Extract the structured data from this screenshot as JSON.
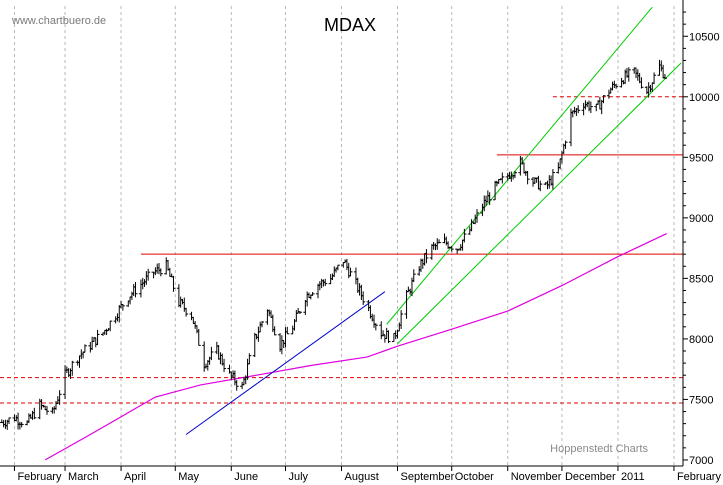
{
  "chart_data": {
    "type": "line",
    "title": "MDAX",
    "watermark": "www.chartbuero.de",
    "credit": "Hoppenstedt Charts",
    "ylim": [
      6950,
      10750
    ],
    "y_ticks": [
      7000,
      7500,
      8000,
      8500,
      9000,
      9500,
      10000,
      10500
    ],
    "x_range": [
      "2010-01-24",
      "2011-02-06"
    ],
    "grid": "dashed vertical at month starts",
    "x_ticks": [
      {
        "date": "2010-02-01",
        "label": "February"
      },
      {
        "date": "2010-03-01",
        "label": "March"
      },
      {
        "date": "2010-04-01",
        "label": "April"
      },
      {
        "date": "2010-05-01",
        "label": "May"
      },
      {
        "date": "2010-06-01",
        "label": "June"
      },
      {
        "date": "2010-07-01",
        "label": "July"
      },
      {
        "date": "2010-08-01",
        "label": "August"
      },
      {
        "date": "2010-09-01",
        "label": "September"
      },
      {
        "date": "2010-10-01",
        "label": "October"
      },
      {
        "date": "2010-11-01",
        "label": "November"
      },
      {
        "date": "2010-12-01",
        "label": "December"
      },
      {
        "date": "2011-01-01",
        "label": "2011"
      },
      {
        "date": "2011-02-01",
        "label": "February"
      }
    ],
    "series": [
      {
        "type": "ohlc",
        "color": "#000000",
        "points": [
          [
            "2010-01-25",
            7310
          ],
          [
            "2010-02-01",
            7350
          ],
          [
            "2010-02-08",
            7300
          ],
          [
            "2010-02-15",
            7450
          ],
          [
            "2010-02-22",
            7380
          ],
          [
            "2010-03-01",
            7700
          ],
          [
            "2010-03-08",
            7850
          ],
          [
            "2010-03-15",
            7950
          ],
          [
            "2010-03-22",
            8050
          ],
          [
            "2010-03-29",
            8200
          ],
          [
            "2010-04-05",
            8350
          ],
          [
            "2010-04-12",
            8450
          ],
          [
            "2010-04-19",
            8550
          ],
          [
            "2010-04-26",
            8600
          ],
          [
            "2010-05-03",
            8300
          ],
          [
            "2010-05-10",
            8200
          ],
          [
            "2010-05-17",
            7800
          ],
          [
            "2010-05-24",
            7900
          ],
          [
            "2010-05-31",
            7700
          ],
          [
            "2010-06-07",
            7600
          ],
          [
            "2010-06-14",
            8000
          ],
          [
            "2010-06-21",
            8250
          ],
          [
            "2010-06-28",
            7950
          ],
          [
            "2010-07-05",
            8100
          ],
          [
            "2010-07-12",
            8350
          ],
          [
            "2010-07-19",
            8450
          ],
          [
            "2010-07-26",
            8500
          ],
          [
            "2010-08-02",
            8650
          ],
          [
            "2010-08-09",
            8450
          ],
          [
            "2010-08-16",
            8250
          ],
          [
            "2010-08-23",
            8050
          ],
          [
            "2010-08-30",
            8000
          ],
          [
            "2010-09-06",
            8350
          ],
          [
            "2010-09-13",
            8600
          ],
          [
            "2010-09-20",
            8750
          ],
          [
            "2010-09-27",
            8800
          ],
          [
            "2010-10-04",
            8750
          ],
          [
            "2010-10-11",
            8900
          ],
          [
            "2010-10-18",
            9100
          ],
          [
            "2010-10-25",
            9250
          ],
          [
            "2010-11-01",
            9350
          ],
          [
            "2010-11-08",
            9450
          ],
          [
            "2010-11-15",
            9300
          ],
          [
            "2010-11-22",
            9250
          ],
          [
            "2010-11-29",
            9400
          ],
          [
            "2010-12-06",
            9850
          ],
          [
            "2010-12-13",
            9950
          ],
          [
            "2010-12-20",
            9900
          ],
          [
            "2010-12-27",
            10050
          ],
          [
            "2011-01-03",
            10150
          ],
          [
            "2011-01-10",
            10200
          ],
          [
            "2011-01-17",
            10050
          ],
          [
            "2011-01-24",
            10250
          ],
          [
            "2011-01-28",
            10150
          ]
        ]
      },
      {
        "type": "line",
        "color": "#e000e0",
        "points": [
          [
            "2010-02-18",
            7000
          ],
          [
            "2010-03-15",
            7210
          ],
          [
            "2010-04-20",
            7520
          ],
          [
            "2010-05-15",
            7620
          ],
          [
            "2010-06-15",
            7700
          ],
          [
            "2010-07-15",
            7780
          ],
          [
            "2010-08-15",
            7850
          ],
          [
            "2010-09-01",
            7940
          ],
          [
            "2010-10-01",
            8080
          ],
          [
            "2010-11-01",
            8230
          ],
          [
            "2010-12-01",
            8440
          ],
          [
            "2011-01-01",
            8680
          ],
          [
            "2011-01-28",
            8870
          ]
        ]
      }
    ],
    "annotations": {
      "horizontal_lines": [
        {
          "y": 8700,
          "from": "2010-04-12",
          "to": "2011-02-06",
          "color": "#e00000",
          "style": "solid"
        },
        {
          "y": 9520,
          "from": "2010-10-26",
          "to": "2011-02-06",
          "color": "#e00000",
          "style": "solid"
        },
        {
          "y": 10000,
          "from": "2010-11-26",
          "to": "2011-02-06",
          "color": "#e00000",
          "style": "dashed"
        },
        {
          "y": 7680,
          "from": "2010-01-24",
          "to": "2011-02-06",
          "color": "#e00000",
          "style": "dashed"
        },
        {
          "y": 7470,
          "from": "2010-01-24",
          "to": "2011-02-06",
          "color": "#e00000",
          "style": "dashed"
        }
      ],
      "trend_lines": [
        {
          "from": [
            "2010-05-07",
            7210
          ],
          "to": [
            "2010-08-25",
            8390
          ],
          "color": "#0000cc"
        },
        {
          "from": [
            "2010-08-26",
            8120
          ],
          "to": [
            "2011-01-20",
            10740
          ],
          "color": "#00cc00"
        },
        {
          "from": [
            "2010-09-01",
            7960
          ],
          "to": [
            "2011-02-05",
            10280
          ],
          "color": "#00cc00"
        }
      ]
    }
  }
}
